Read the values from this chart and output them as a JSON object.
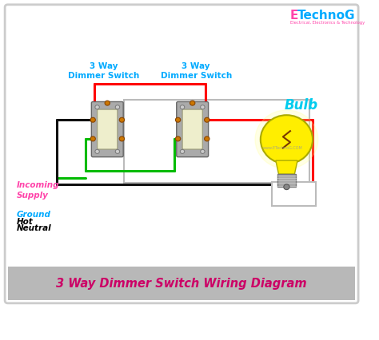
{
  "title": "3 Way Dimmer Switch Wiring Diagram",
  "title_color": "#cc0066",
  "title_bg": "#b8b8b8",
  "bg_color": "#ffffff",
  "label1": "3 Way\nDimmer Switch",
  "label2": "3 Way\nDimmer Switch",
  "label_color": "#00aaff",
  "bulb_label": "Bulb",
  "bulb_label_color": "#00ccee",
  "incoming_label": "Incoming\nSupply",
  "incoming_color": "#ff44aa",
  "ground_label": "Ground",
  "ground_color": "#00aaff",
  "hot_label": "Hot",
  "hot_color": "#000000",
  "neutral_label": "Neutral",
  "neutral_color": "#000000",
  "wire_red": "#ff0000",
  "wire_green": "#00bb00",
  "wire_black": "#111111",
  "etechnog_e_color": "#ff44aa",
  "etechnog_rest_color": "#00aaff",
  "etechnog_sub_color": "#ff44aa",
  "s1x": 0.295,
  "s1y": 0.62,
  "s2x": 0.53,
  "s2y": 0.62,
  "bx": 0.79,
  "by": 0.56,
  "sw": 0.08,
  "sh": 0.155,
  "lw": 2.2
}
